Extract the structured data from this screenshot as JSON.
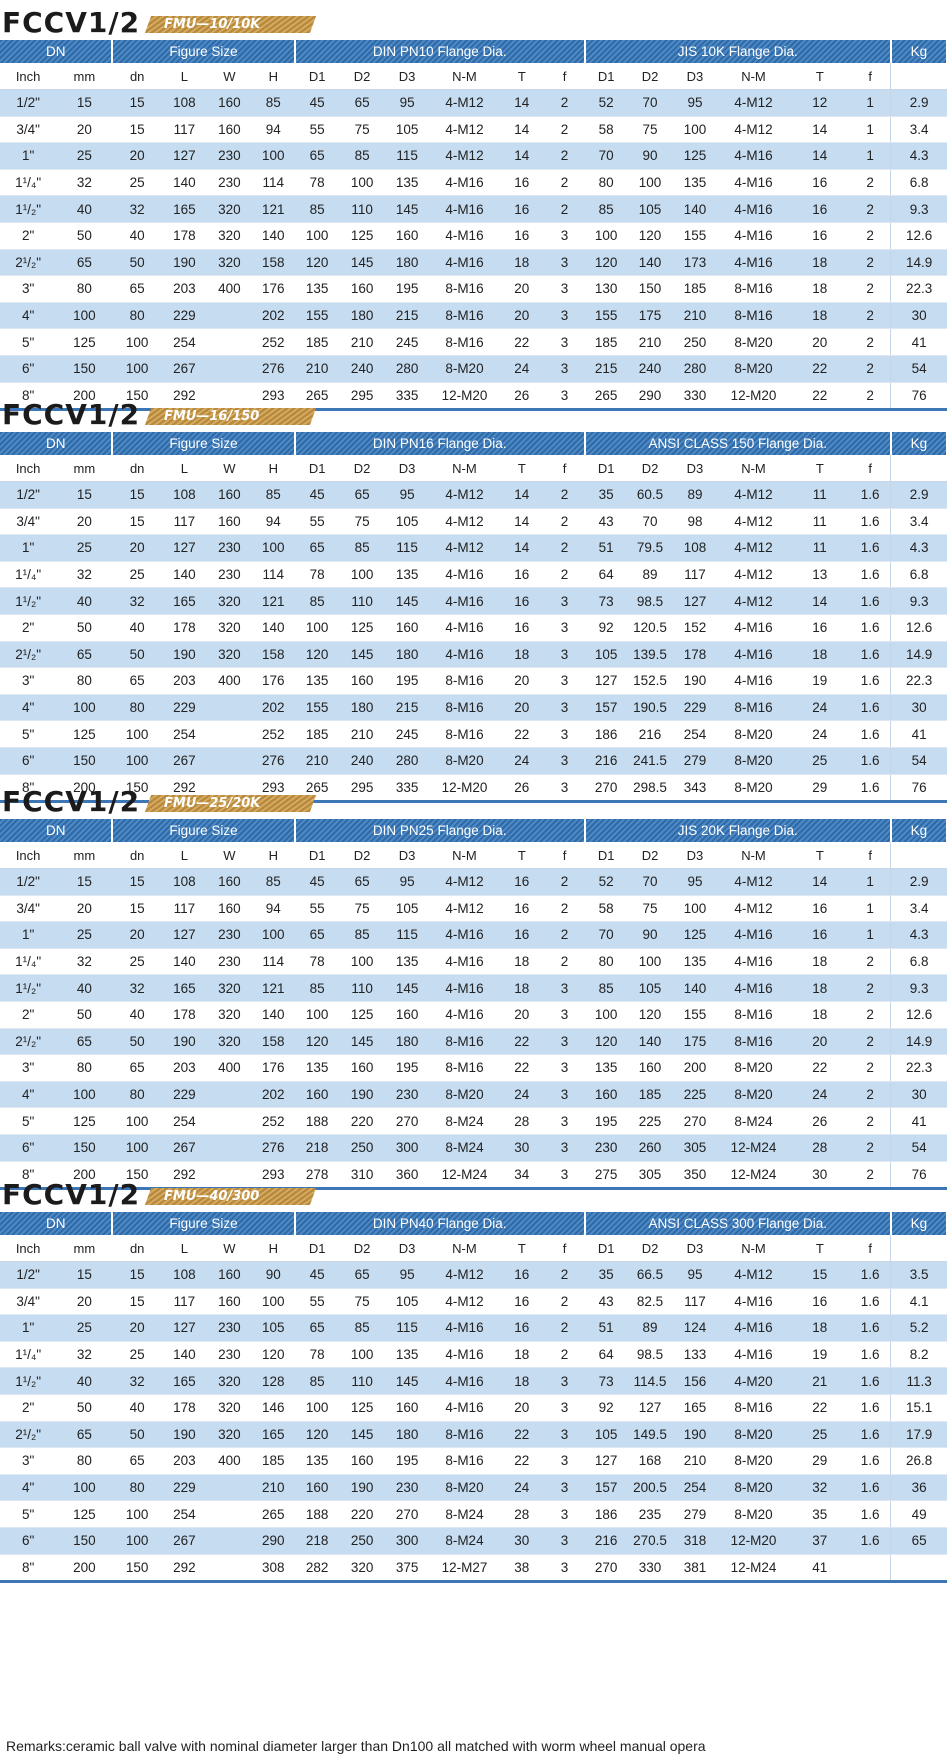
{
  "sections": [
    {
      "brand": "FCCV1/2",
      "model": "FMU—10/10K",
      "groups": {
        "dn": "DN",
        "figure": "Figure Size",
        "flange1": "DIN PN10  Flange Dia.",
        "flange2": "JIS 10K  Flange Dia.",
        "kg": "Kg"
      },
      "columns": [
        "Inch",
        "mm",
        "dn",
        "L",
        "W",
        "H",
        "D1",
        "D2",
        "D3",
        "N-M",
        "T",
        "f",
        "D1",
        "D2",
        "D3",
        "N-M",
        "T",
        "f",
        ""
      ],
      "rows": [
        [
          "1/2\"",
          "15",
          "15",
          "108",
          "160",
          "85",
          "45",
          "65",
          "95",
          "4-M12",
          "14",
          "2",
          "52",
          "70",
          "95",
          "4-M12",
          "12",
          "1",
          "2.9"
        ],
        [
          "3/4\"",
          "20",
          "15",
          "117",
          "160",
          "94",
          "55",
          "75",
          "105",
          "4-M12",
          "14",
          "2",
          "58",
          "75",
          "100",
          "4-M12",
          "14",
          "1",
          "3.4"
        ],
        [
          "1\"",
          "25",
          "20",
          "127",
          "230",
          "100",
          "65",
          "85",
          "115",
          "4-M12",
          "14",
          "2",
          "70",
          "90",
          "125",
          "4-M16",
          "14",
          "1",
          "4.3"
        ],
        [
          "1¹/₄\"",
          "32",
          "25",
          "140",
          "230",
          "114",
          "78",
          "100",
          "135",
          "4-M16",
          "16",
          "2",
          "80",
          "100",
          "135",
          "4-M16",
          "16",
          "2",
          "6.8"
        ],
        [
          "1¹/₂\"",
          "40",
          "32",
          "165",
          "320",
          "121",
          "85",
          "110",
          "145",
          "4-M16",
          "16",
          "2",
          "85",
          "105",
          "140",
          "4-M16",
          "16",
          "2",
          "9.3"
        ],
        [
          "2\"",
          "50",
          "40",
          "178",
          "320",
          "140",
          "100",
          "125",
          "160",
          "4-M16",
          "16",
          "3",
          "100",
          "120",
          "155",
          "4-M16",
          "16",
          "2",
          "12.6"
        ],
        [
          "2¹/₂\"",
          "65",
          "50",
          "190",
          "320",
          "158",
          "120",
          "145",
          "180",
          "4-M16",
          "18",
          "3",
          "120",
          "140",
          "173",
          "4-M16",
          "18",
          "2",
          "14.9"
        ],
        [
          "3\"",
          "80",
          "65",
          "203",
          "400",
          "176",
          "135",
          "160",
          "195",
          "8-M16",
          "20",
          "3",
          "130",
          "150",
          "185",
          "8-M16",
          "18",
          "2",
          "22.3"
        ],
        [
          "4\"",
          "100",
          "80",
          "229",
          "",
          "202",
          "155",
          "180",
          "215",
          "8-M16",
          "20",
          "3",
          "155",
          "175",
          "210",
          "8-M16",
          "18",
          "2",
          "30"
        ],
        [
          "5\"",
          "125",
          "100",
          "254",
          "",
          "252",
          "185",
          "210",
          "245",
          "8-M16",
          "22",
          "3",
          "185",
          "210",
          "250",
          "8-M20",
          "20",
          "2",
          "41"
        ],
        [
          "6\"",
          "150",
          "100",
          "267",
          "",
          "276",
          "210",
          "240",
          "280",
          "8-M20",
          "24",
          "3",
          "215",
          "240",
          "280",
          "8-M20",
          "22",
          "2",
          "54"
        ],
        [
          "8\"",
          "200",
          "150",
          "292",
          "",
          "293",
          "265",
          "295",
          "335",
          "12-M20",
          "26",
          "3",
          "265",
          "290",
          "330",
          "12-M20",
          "22",
          "2",
          "76"
        ]
      ]
    },
    {
      "brand": "FCCV1/2",
      "model": "FMU—16/150",
      "groups": {
        "dn": "DN",
        "figure": "Figure Size",
        "flange1": "DIN PN16  Flange Dia.",
        "flange2": "ANSI CLASS 150 Flange Dia.",
        "kg": "Kg"
      },
      "columns": [
        "Inch",
        "mm",
        "dn",
        "L",
        "W",
        "H",
        "D1",
        "D2",
        "D3",
        "N-M",
        "T",
        "f",
        "D1",
        "D2",
        "D3",
        "N-M",
        "T",
        "f",
        ""
      ],
      "rows": [
        [
          "1/2\"",
          "15",
          "15",
          "108",
          "160",
          "85",
          "45",
          "65",
          "95",
          "4-M12",
          "14",
          "2",
          "35",
          "60.5",
          "89",
          "4-M12",
          "11",
          "1.6",
          "2.9"
        ],
        [
          "3/4\"",
          "20",
          "15",
          "117",
          "160",
          "94",
          "55",
          "75",
          "105",
          "4-M12",
          "14",
          "2",
          "43",
          "70",
          "98",
          "4-M12",
          "11",
          "1.6",
          "3.4"
        ],
        [
          "1\"",
          "25",
          "20",
          "127",
          "230",
          "100",
          "65",
          "85",
          "115",
          "4-M12",
          "14",
          "2",
          "51",
          "79.5",
          "108",
          "4-M12",
          "11",
          "1.6",
          "4.3"
        ],
        [
          "1¹/₄\"",
          "32",
          "25",
          "140",
          "230",
          "114",
          "78",
          "100",
          "135",
          "4-M16",
          "16",
          "2",
          "64",
          "89",
          "117",
          "4-M12",
          "13",
          "1.6",
          "6.8"
        ],
        [
          "1¹/₂\"",
          "40",
          "32",
          "165",
          "320",
          "121",
          "85",
          "110",
          "145",
          "4-M16",
          "16",
          "3",
          "73",
          "98.5",
          "127",
          "4-M12",
          "14",
          "1.6",
          "9.3"
        ],
        [
          "2\"",
          "50",
          "40",
          "178",
          "320",
          "140",
          "100",
          "125",
          "160",
          "4-M16",
          "16",
          "3",
          "92",
          "120.5",
          "152",
          "4-M16",
          "16",
          "1.6",
          "12.6"
        ],
        [
          "2¹/₂\"",
          "65",
          "50",
          "190",
          "320",
          "158",
          "120",
          "145",
          "180",
          "4-M16",
          "18",
          "3",
          "105",
          "139.5",
          "178",
          "4-M16",
          "18",
          "1.6",
          "14.9"
        ],
        [
          "3\"",
          "80",
          "65",
          "203",
          "400",
          "176",
          "135",
          "160",
          "195",
          "8-M16",
          "20",
          "3",
          "127",
          "152.5",
          "190",
          "4-M16",
          "19",
          "1.6",
          "22.3"
        ],
        [
          "4\"",
          "100",
          "80",
          "229",
          "",
          "202",
          "155",
          "180",
          "215",
          "8-M16",
          "20",
          "3",
          "157",
          "190.5",
          "229",
          "8-M16",
          "24",
          "1.6",
          "30"
        ],
        [
          "5\"",
          "125",
          "100",
          "254",
          "",
          "252",
          "185",
          "210",
          "245",
          "8-M16",
          "22",
          "3",
          "186",
          "216",
          "254",
          "8-M20",
          "24",
          "1.6",
          "41"
        ],
        [
          "6\"",
          "150",
          "100",
          "267",
          "",
          "276",
          "210",
          "240",
          "280",
          "8-M20",
          "24",
          "3",
          "216",
          "241.5",
          "279",
          "8-M20",
          "25",
          "1.6",
          "54"
        ],
        [
          "8\"",
          "200",
          "150",
          "292",
          "",
          "293",
          "265",
          "295",
          "335",
          "12-M20",
          "26",
          "3",
          "270",
          "298.5",
          "343",
          "8-M20",
          "29",
          "1.6",
          "76"
        ]
      ]
    },
    {
      "brand": "FCCV1/2",
      "model": "FMU—25/20K",
      "groups": {
        "dn": "DN",
        "figure": "Figure Size",
        "flange1": "DIN PN25  Flange Dia.",
        "flange2": "JIS 20K  Flange Dia.",
        "kg": "Kg"
      },
      "columns": [
        "Inch",
        "mm",
        "dn",
        "L",
        "W",
        "H",
        "D1",
        "D2",
        "D3",
        "N-M",
        "T",
        "f",
        "D1",
        "D2",
        "D3",
        "N-M",
        "T",
        "f",
        ""
      ],
      "rows": [
        [
          "1/2\"",
          "15",
          "15",
          "108",
          "160",
          "85",
          "45",
          "65",
          "95",
          "4-M12",
          "16",
          "2",
          "52",
          "70",
          "95",
          "4-M12",
          "14",
          "1",
          "2.9"
        ],
        [
          "3/4\"",
          "20",
          "15",
          "117",
          "160",
          "94",
          "55",
          "75",
          "105",
          "4-M12",
          "16",
          "2",
          "58",
          "75",
          "100",
          "4-M12",
          "16",
          "1",
          "3.4"
        ],
        [
          "1\"",
          "25",
          "20",
          "127",
          "230",
          "100",
          "65",
          "85",
          "115",
          "4-M16",
          "16",
          "2",
          "70",
          "90",
          "125",
          "4-M16",
          "16",
          "1",
          "4.3"
        ],
        [
          "1¹/₄\"",
          "32",
          "25",
          "140",
          "230",
          "114",
          "78",
          "100",
          "135",
          "4-M16",
          "18",
          "2",
          "80",
          "100",
          "135",
          "4-M16",
          "18",
          "2",
          "6.8"
        ],
        [
          "1¹/₂\"",
          "40",
          "32",
          "165",
          "320",
          "121",
          "85",
          "110",
          "145",
          "4-M16",
          "18",
          "3",
          "85",
          "105",
          "140",
          "4-M16",
          "18",
          "2",
          "9.3"
        ],
        [
          "2\"",
          "50",
          "40",
          "178",
          "320",
          "140",
          "100",
          "125",
          "160",
          "4-M16",
          "20",
          "3",
          "100",
          "120",
          "155",
          "8-M16",
          "18",
          "2",
          "12.6"
        ],
        [
          "2¹/₂\"",
          "65",
          "50",
          "190",
          "320",
          "158",
          "120",
          "145",
          "180",
          "8-M16",
          "22",
          "3",
          "120",
          "140",
          "175",
          "8-M16",
          "20",
          "2",
          "14.9"
        ],
        [
          "3\"",
          "80",
          "65",
          "203",
          "400",
          "176",
          "135",
          "160",
          "195",
          "8-M16",
          "22",
          "3",
          "135",
          "160",
          "200",
          "8-M20",
          "22",
          "2",
          "22.3"
        ],
        [
          "4\"",
          "100",
          "80",
          "229",
          "",
          "202",
          "160",
          "190",
          "230",
          "8-M20",
          "24",
          "3",
          "160",
          "185",
          "225",
          "8-M20",
          "24",
          "2",
          "30"
        ],
        [
          "5\"",
          "125",
          "100",
          "254",
          "",
          "252",
          "188",
          "220",
          "270",
          "8-M24",
          "28",
          "3",
          "195",
          "225",
          "270",
          "8-M24",
          "26",
          "2",
          "41"
        ],
        [
          "6\"",
          "150",
          "100",
          "267",
          "",
          "276",
          "218",
          "250",
          "300",
          "8-M24",
          "30",
          "3",
          "230",
          "260",
          "305",
          "12-M24",
          "28",
          "2",
          "54"
        ],
        [
          "8\"",
          "200",
          "150",
          "292",
          "",
          "293",
          "278",
          "310",
          "360",
          "12-M24",
          "34",
          "3",
          "275",
          "305",
          "350",
          "12-M24",
          "30",
          "2",
          "76"
        ]
      ]
    },
    {
      "brand": "FCCV1/2",
      "model": "FMU—40/300",
      "groups": {
        "dn": "DN",
        "figure": "Figure Size",
        "flange1": "DIN  PN40  Flange Dia.",
        "flange2": "ANSI CLASS 300 Flange Dia.",
        "kg": "Kg"
      },
      "columns": [
        "Inch",
        "mm",
        "dn",
        "L",
        "W",
        "H",
        "D1",
        "D2",
        "D3",
        "N-M",
        "T",
        "f",
        "D1",
        "D2",
        "D3",
        "N-M",
        "T",
        "f",
        ""
      ],
      "rows": [
        [
          "1/2\"",
          "15",
          "15",
          "108",
          "160",
          "90",
          "45",
          "65",
          "95",
          "4-M12",
          "16",
          "2",
          "35",
          "66.5",
          "95",
          "4-M12",
          "15",
          "1.6",
          "3.5"
        ],
        [
          "3/4\"",
          "20",
          "15",
          "117",
          "160",
          "100",
          "55",
          "75",
          "105",
          "4-M12",
          "16",
          "2",
          "43",
          "82.5",
          "117",
          "4-M16",
          "16",
          "1.6",
          "4.1"
        ],
        [
          "1\"",
          "25",
          "20",
          "127",
          "230",
          "105",
          "65",
          "85",
          "115",
          "4-M16",
          "16",
          "2",
          "51",
          "89",
          "124",
          "4-M16",
          "18",
          "1.6",
          "5.2"
        ],
        [
          "1¹/₄\"",
          "32",
          "25",
          "140",
          "230",
          "120",
          "78",
          "100",
          "135",
          "4-M16",
          "18",
          "2",
          "64",
          "98.5",
          "133",
          "4-M16",
          "19",
          "1.6",
          "8.2"
        ],
        [
          "1¹/₂\"",
          "40",
          "32",
          "165",
          "320",
          "128",
          "85",
          "110",
          "145",
          "4-M16",
          "18",
          "3",
          "73",
          "114.5",
          "156",
          "4-M20",
          "21",
          "1.6",
          "11.3"
        ],
        [
          "2\"",
          "50",
          "40",
          "178",
          "320",
          "146",
          "100",
          "125",
          "160",
          "4-M16",
          "20",
          "3",
          "92",
          "127",
          "165",
          "8-M16",
          "22",
          "1.6",
          "15.1"
        ],
        [
          "2¹/₂\"",
          "65",
          "50",
          "190",
          "320",
          "165",
          "120",
          "145",
          "180",
          "8-M16",
          "22",
          "3",
          "105",
          "149.5",
          "190",
          "8-M20",
          "25",
          "1.6",
          "17.9"
        ],
        [
          "3\"",
          "80",
          "65",
          "203",
          "400",
          "185",
          "135",
          "160",
          "195",
          "8-M16",
          "22",
          "3",
          "127",
          "168",
          "210",
          "8-M20",
          "29",
          "1.6",
          "26.8"
        ],
        [
          "4\"",
          "100",
          "80",
          "229",
          "",
          "210",
          "160",
          "190",
          "230",
          "8-M20",
          "24",
          "3",
          "157",
          "200.5",
          "254",
          "8-M20",
          "32",
          "1.6",
          "36"
        ],
        [
          "5\"",
          "125",
          "100",
          "254",
          "",
          "265",
          "188",
          "220",
          "270",
          "8-M24",
          "28",
          "3",
          "186",
          "235",
          "279",
          "8-M20",
          "35",
          "1.6",
          "49"
        ],
        [
          "6\"",
          "150",
          "100",
          "267",
          "",
          "290",
          "218",
          "250",
          "300",
          "8-M24",
          "30",
          "3",
          "216",
          "270.5",
          "318",
          "12-M20",
          "37",
          "1.6",
          "65"
        ],
        [
          "8\"",
          "200",
          "150",
          "292",
          "",
          "308",
          "282",
          "320",
          "375",
          "12-M27",
          "38",
          "3",
          "270",
          "330",
          "381",
          "12-M24",
          "41",
          "",
          ""
        ]
      ]
    }
  ],
  "remarks": "Remarks:ceramic ball valve with nominal diameter larger than Dn100 all matched with worm wheel manual opera"
}
